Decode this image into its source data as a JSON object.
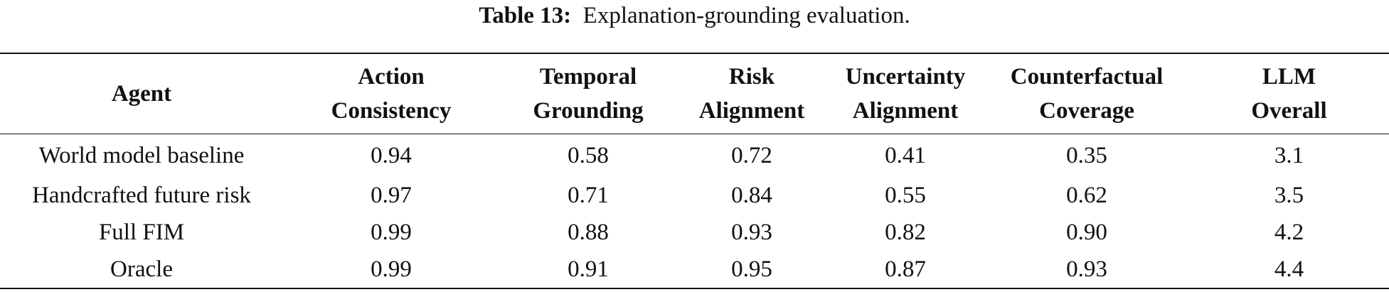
{
  "caption": {
    "label": "Table 13:",
    "text": "Explanation-grounding evaluation."
  },
  "table": {
    "headers": [
      {
        "line1": "Agent",
        "line2": ""
      },
      {
        "line1": "Action",
        "line2": "Consistency"
      },
      {
        "line1": "Temporal",
        "line2": "Grounding"
      },
      {
        "line1": "Risk",
        "line2": "Alignment"
      },
      {
        "line1": "Uncertainty",
        "line2": "Alignment"
      },
      {
        "line1": "Counterfactual",
        "line2": "Coverage"
      },
      {
        "line1": "LLM",
        "line2": "Overall"
      }
    ],
    "rows": [
      [
        "World model baseline",
        "0.94",
        "0.58",
        "0.72",
        "0.41",
        "0.35",
        "3.1"
      ],
      [
        "Handcrafted future risk",
        "0.97",
        "0.71",
        "0.84",
        "0.55",
        "0.62",
        "3.5"
      ],
      [
        "Full FIM",
        "0.99",
        "0.88",
        "0.93",
        "0.82",
        "0.90",
        "4.2"
      ],
      [
        "Oracle",
        "0.99",
        "0.91",
        "0.95",
        "0.87",
        "0.93",
        "4.4"
      ]
    ]
  }
}
